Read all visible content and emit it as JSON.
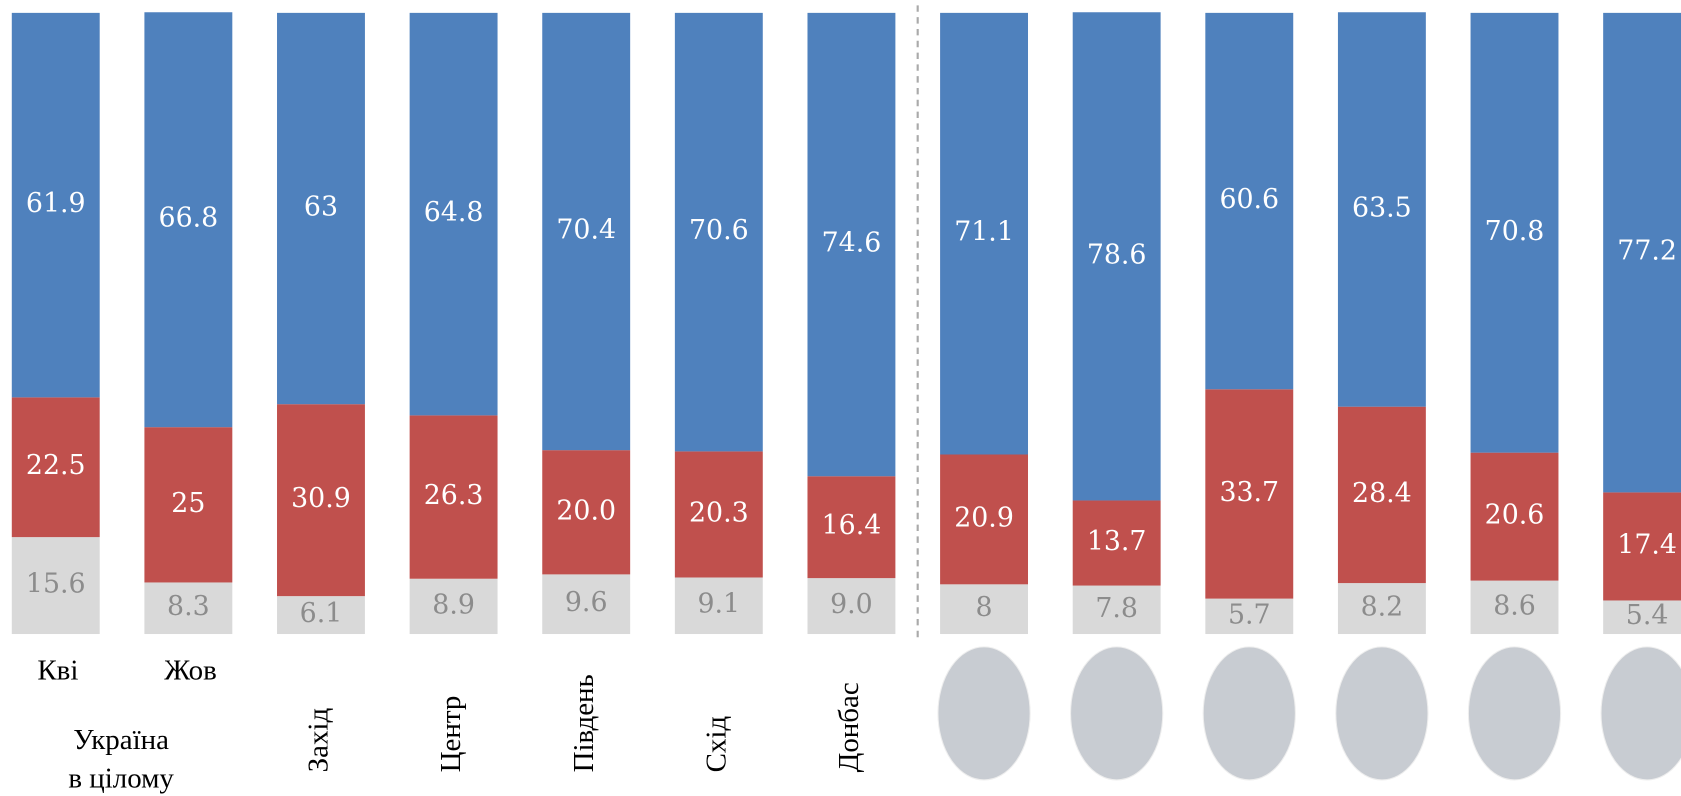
{
  "chart_data": {
    "type": "stacked_bar",
    "categories": [
      "Кві",
      "Жов",
      "Захід",
      "Центр",
      "Південь",
      "Схід",
      "Донбас",
      null,
      null,
      null,
      null,
      null,
      null
    ],
    "group_label": [
      "Україна",
      "в цілому"
    ],
    "ylim": [
      0,
      100
    ],
    "series": [
      {
        "color": "#d9d9d9",
        "values": [
          15.6,
          8.3,
          6.1,
          8.9,
          9.6,
          9.1,
          9,
          8,
          7.8,
          5.7,
          8.2,
          8.6,
          5.4
        ],
        "value_labels": [
          "15.6",
          "8.3",
          "6.1",
          "8.9",
          "9.6",
          "9.1",
          "9.0",
          "8",
          "7.8",
          "5.7",
          "8.2",
          "8.6",
          "5.4"
        ]
      },
      {
        "color": "#c0504d",
        "values": [
          22.5,
          25,
          30.9,
          26.3,
          20,
          20.3,
          16.4,
          20.9,
          13.7,
          33.7,
          28.4,
          20.6,
          17.4
        ],
        "value_labels": [
          "22.5",
          "25",
          "30.9",
          "26.3",
          "20.0",
          "20.3",
          "16.4",
          "20.9",
          "13.7",
          "33.7",
          "28.4",
          "20.6",
          "17.4"
        ]
      },
      {
        "color": "#4f81bd",
        "values": [
          61.9,
          66.8,
          63,
          64.8,
          70.4,
          70.6,
          74.6,
          71.1,
          78.6,
          60.6,
          63.5,
          70.8,
          77.2
        ]
      }
    ]
  }
}
